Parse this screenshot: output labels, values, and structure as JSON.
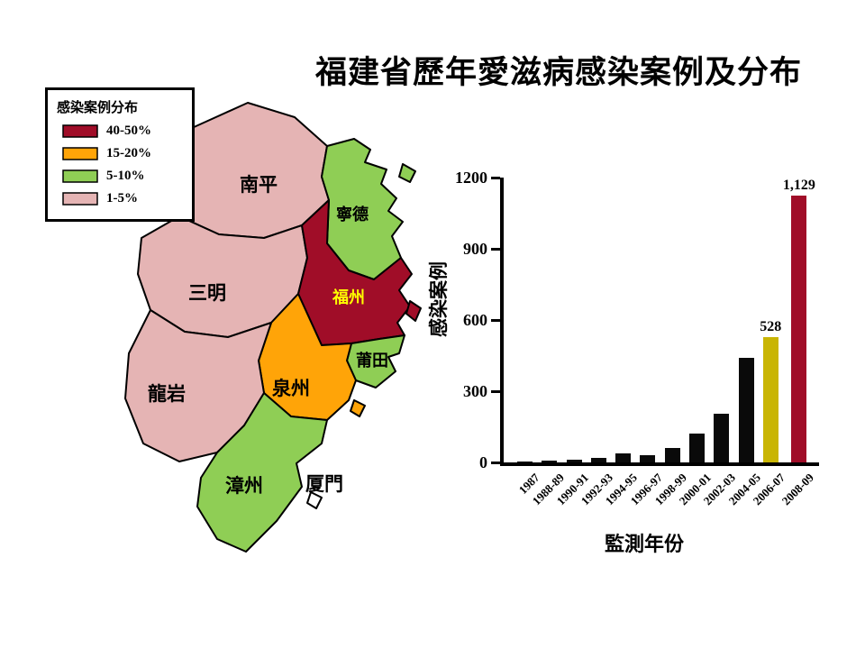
{
  "slide": {
    "title": "福建省歷年愛滋病感染案例及分布"
  },
  "legend": {
    "title": "感染案例分布",
    "items": [
      {
        "label": "40-50%",
        "color": "#a00d28"
      },
      {
        "label": "15-20%",
        "color": "#ffa408"
      },
      {
        "label": "5-10%",
        "color": "#8fce55"
      },
      {
        "label": "1-5%",
        "color": "#e5b4b4"
      }
    ]
  },
  "map": {
    "regions": [
      {
        "name": "南平",
        "level": "1-5%",
        "color": "#e5b4b4",
        "label_color": "#000000"
      },
      {
        "name": "寧德",
        "level": "5-10%",
        "color": "#8fce55",
        "label_color": "#000000"
      },
      {
        "name": "三明",
        "level": "1-5%",
        "color": "#e5b4b4",
        "label_color": "#000000"
      },
      {
        "name": "福州",
        "level": "40-50%",
        "color": "#a00d28",
        "label_color": "#ffff00"
      },
      {
        "name": "莆田",
        "level": "5-10%",
        "color": "#8fce55",
        "label_color": "#000000"
      },
      {
        "name": "泉州",
        "level": "15-20%",
        "color": "#ffa408",
        "label_color": "#000000"
      },
      {
        "name": "龍岩",
        "level": "1-5%",
        "color": "#e5b4b4",
        "label_color": "#000000"
      },
      {
        "name": "漳州",
        "level": "5-10%",
        "color": "#8fce55",
        "label_color": "#000000"
      },
      {
        "name": "厦門",
        "level": "",
        "color": "#ffffff",
        "label_color": "#000000"
      }
    ]
  },
  "chart_data": {
    "type": "bar",
    "title": "",
    "categories": [
      "1987",
      "1988-89",
      "1990-91",
      "1992-93",
      "1994-95",
      "1996-97",
      "1998-99",
      "2000-01",
      "2002-03",
      "2004-05",
      "2006-07",
      "2008-09"
    ],
    "values": [
      3,
      6,
      10,
      18,
      38,
      30,
      60,
      120,
      205,
      440,
      528,
      1129
    ],
    "bar_colors": [
      "#0a0a0a",
      "#0a0a0a",
      "#0a0a0a",
      "#0a0a0a",
      "#0a0a0a",
      "#0a0a0a",
      "#0a0a0a",
      "#0a0a0a",
      "#0a0a0a",
      "#0a0a0a",
      "#c9b504",
      "#a00d28"
    ],
    "value_labels": [
      "",
      "",
      "",
      "",
      "",
      "",
      "",
      "",
      "",
      "",
      "528",
      "1,129"
    ],
    "ylabel": "感染案例",
    "xlabel": "監測年份",
    "ylim": [
      0,
      1200
    ],
    "yticks": [
      0,
      300,
      600,
      900,
      1200
    ],
    "grid": false,
    "legend_position": "none"
  }
}
